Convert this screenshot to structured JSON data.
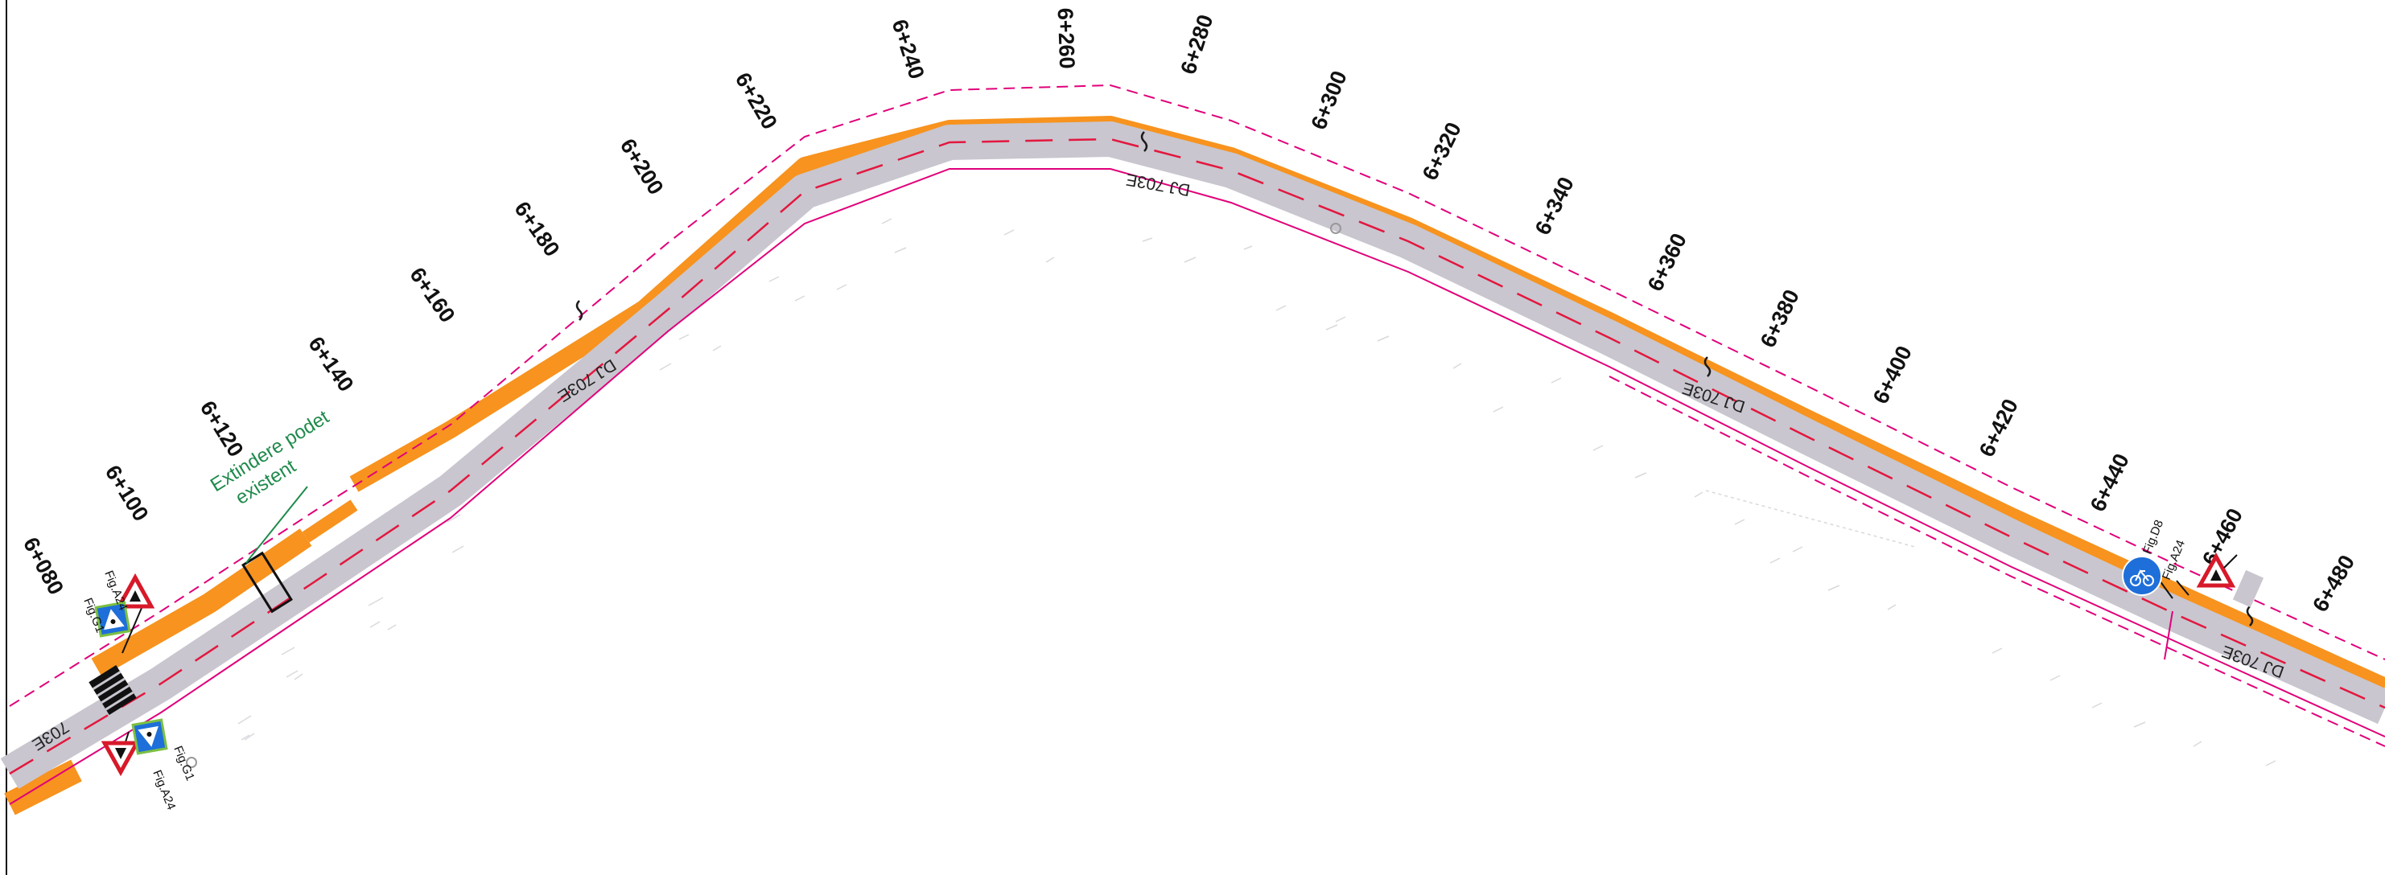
{
  "plan": {
    "chainages": [
      "6+080",
      "6+100",
      "6+120",
      "6+140",
      "6+160",
      "6+180",
      "6+200",
      "6+220",
      "6+240",
      "6+260",
      "6+280",
      "6+300",
      "6+320",
      "6+340",
      "6+360",
      "6+380",
      "6+400",
      "6+420",
      "6+440",
      "6+460",
      "6+480"
    ],
    "road_name": "DJ 703E",
    "road_name_short": "703E",
    "annotation": {
      "line1": "Extindere podet",
      "line2": "existent"
    },
    "signs": {
      "a24": "Fig.A24",
      "g1": "Fig.G1",
      "d8": "Fig.D8"
    },
    "colors": {
      "carriageway": "#c9c6cf",
      "sidewalk": "#f7931e",
      "boundary": "#e0007a",
      "centerline": "#e3173e",
      "annotation": "#1f8a4c",
      "sign_blue": "#1e6fd9"
    }
  }
}
